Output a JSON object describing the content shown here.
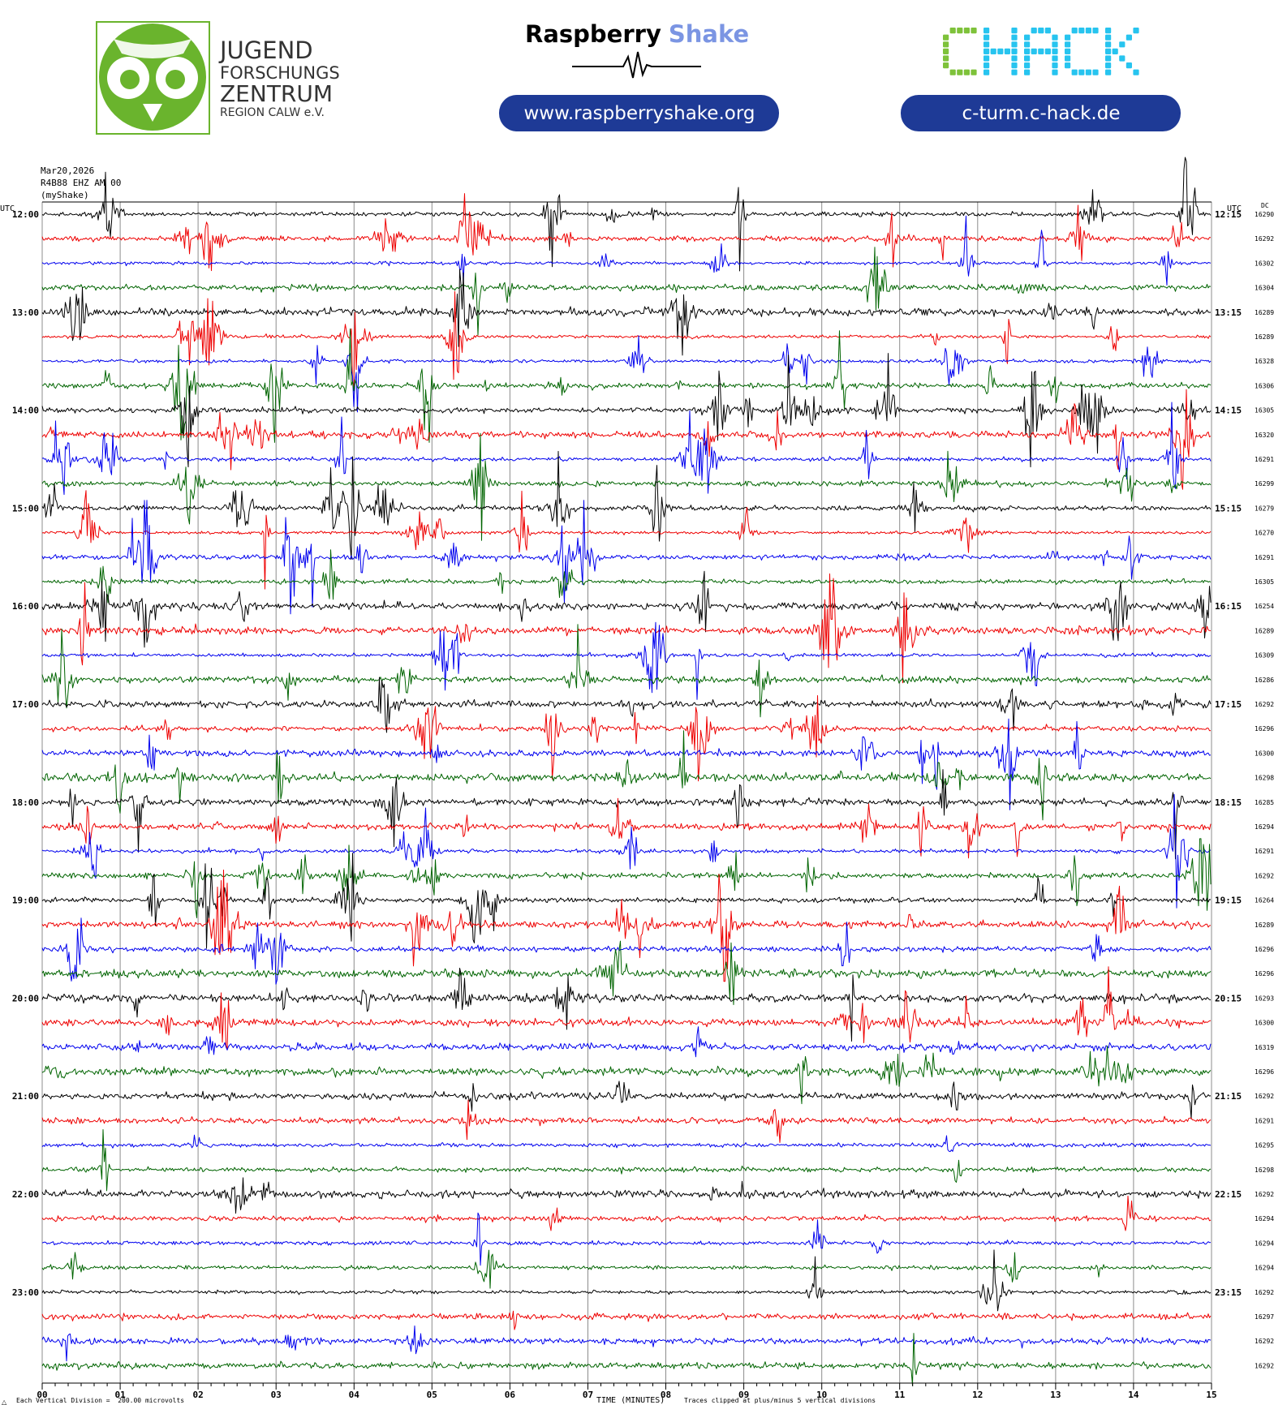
{
  "header": {
    "jfz_logo": {
      "line1": "JUGEND",
      "line2": "FORSCHUNGS",
      "line3": "ZENTRUM",
      "line4": "REGION CALW e.V."
    },
    "rs_logo": {
      "word1": "Raspberry",
      "word2": "Shake",
      "url": "www.raspberryshake.org"
    },
    "chack_logo": {
      "text": "CHACK",
      "url": "c-turm.c-hack.de"
    },
    "colors": {
      "jfz_green": "#6ab42d",
      "rs_blue": "#7b95e3",
      "pill_navy": "#1e3a96",
      "chack_green": "#7ec23a",
      "chack_cyan": "#27c4ef"
    }
  },
  "chart_data": {
    "type": "helicorder",
    "date": "Mar20,2026",
    "station": "R4B88 EHZ AM 00",
    "network_label": "(myShake)",
    "left_timezone": "UTC",
    "right_timezone": "UTC",
    "right_column_label": "DC",
    "row_minutes": 15,
    "left_hour_labels": [
      "12:00",
      "13:00",
      "14:00",
      "15:00",
      "16:00",
      "17:00",
      "18:00",
      "19:00",
      "20:00",
      "21:00",
      "22:00",
      "23:00"
    ],
    "right_labels": [
      "12:15",
      "13:15",
      "14:15",
      "15:15",
      "16:15",
      "17:15",
      "18:15",
      "19:15",
      "20:15",
      "21:15",
      "22:15",
      "23:15"
    ],
    "dc_offsets": [
      "16290",
      "16292",
      "16302",
      "16304",
      "16289",
      "16289",
      "16328",
      "16306",
      "16305",
      "16320",
      "16291",
      "16299",
      "16279",
      "16270",
      "16291",
      "16305",
      "16254",
      "16289",
      "16309",
      "16286",
      "16292",
      "16296",
      "16300",
      "16298",
      "16285",
      "16294",
      "16291",
      "16292",
      "16264",
      "16289",
      "16296",
      "16296",
      "16293",
      "16300",
      "16319",
      "16296",
      "16292",
      "16291",
      "16295",
      "16298",
      "16292",
      "16294",
      "16294",
      "16294",
      "16292",
      "16297",
      "16292",
      "16292"
    ],
    "trace_colors": [
      "#000000",
      "#ee0000",
      "#0000ee",
      "#006400"
    ],
    "x_tick_labels": [
      "00",
      "01",
      "02",
      "03",
      "04",
      "05",
      "06",
      "07",
      "08",
      "09",
      "10",
      "11",
      "12",
      "13",
      "14",
      "15"
    ],
    "xlabel": "TIME (MINUTES)",
    "scale_note": "Each Vertical Division =  200.00 microvolts",
    "clip_note": "Traces clipped at plus/minus 5 vertical divisions",
    "corner_mark": "△",
    "grid": true,
    "row_count": 48,
    "seed": 20260320
  }
}
